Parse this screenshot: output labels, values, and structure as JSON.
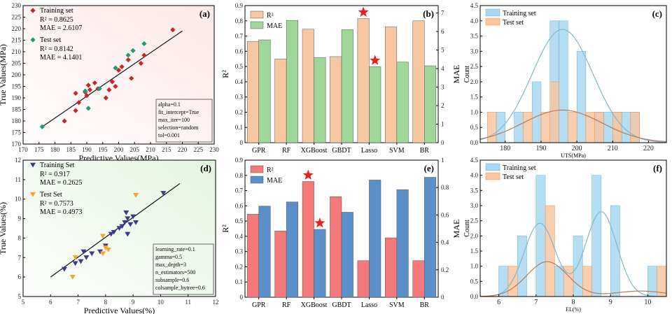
{
  "chart_data": [
    {
      "id": "a",
      "panel_label": "(a)",
      "type": "scatter",
      "xlabel": "Predictive Values(MPa)",
      "ylabel": "True Values(MPa)",
      "xlim": [
        170,
        230
      ],
      "ylim": [
        170,
        230
      ],
      "xticks": [
        170,
        175,
        180,
        185,
        190,
        195,
        200,
        205,
        210,
        215,
        220,
        225,
        230
      ],
      "yticks": [
        170,
        175,
        180,
        185,
        190,
        195,
        200,
        205,
        210,
        215,
        220,
        225,
        230
      ],
      "background": "#fde8e8",
      "fit_line": [
        [
          176,
          177.5
        ],
        [
          220,
          219
        ]
      ],
      "legend": [
        {
          "name": "Training set",
          "stats": [
            "R² = 0.8625",
            "MAE = 2.6107"
          ],
          "color": "#c62828",
          "marker": "diamond"
        },
        {
          "name": "Test set",
          "stats": [
            "R² = 0.8142",
            "MAE = 4.1401"
          ],
          "color": "#1a9e77",
          "marker": "diamond"
        }
      ],
      "series": [
        {
          "name": "Training set",
          "color": "#c62828",
          "points": [
            [
              183,
              180
            ],
            [
              186.5,
              184.5
            ],
            [
              186.5,
              192
            ],
            [
              187.5,
              188
            ],
            [
              189.5,
              192.5
            ],
            [
              190.5,
              195.5
            ],
            [
              191,
              193.5
            ],
            [
              193.5,
              194
            ],
            [
              192.5,
              196.5
            ],
            [
              196,
              190
            ],
            [
              197,
              193.5
            ],
            [
              198,
              197
            ],
            [
              199,
              195
            ],
            [
              200,
              202
            ],
            [
              201,
              203.5
            ],
            [
              203,
              206.5
            ],
            [
              204,
              198.5
            ],
            [
              207,
              205
            ],
            [
              208,
              208.5
            ],
            [
              217,
              219.5
            ],
            [
              190,
              191
            ]
          ]
        },
        {
          "name": "Test set",
          "color": "#1a9e77",
          "points": [
            [
              176,
              177.5
            ],
            [
              189.5,
              193
            ],
            [
              190.5,
              185.5
            ],
            [
              194,
              194
            ],
            [
              199,
              203
            ],
            [
              203,
              208.5
            ],
            [
              204.5,
              210.5
            ],
            [
              208,
              213.5
            ]
          ]
        }
      ],
      "params_box": [
        "alpha=0.1",
        "fit_intercept=True",
        "max_iter=100",
        "selection=random",
        "tol=0.001"
      ]
    },
    {
      "id": "b",
      "panel_label": "(b)",
      "type": "bar",
      "categories": [
        "GPR",
        "RF",
        "XGBoost",
        "GBDT",
        "Lasso",
        "SVM",
        "BR"
      ],
      "ylabel": "R²",
      "y2label": "MAE",
      "ylim": [
        0,
        0.9
      ],
      "yticks": [
        0,
        0.1,
        0.2,
        0.3,
        0.4,
        0.5,
        0.6,
        0.7,
        0.8,
        0.9
      ],
      "y2lim": [
        0,
        7.4
      ],
      "y2ticks": [
        0,
        1,
        2,
        3,
        4,
        5,
        6,
        7
      ],
      "series": [
        {
          "name": "R²",
          "axis": "left",
          "color": "#f6c7a1",
          "values": [
            0.665,
            0.55,
            0.745,
            0.565,
            0.815,
            0.76,
            0.8
          ]
        },
        {
          "name": "MAE",
          "axis": "right",
          "color": "#9fd69a",
          "values": [
            5.55,
            6.6,
            4.6,
            6.1,
            4.1,
            4.35,
            4.15
          ]
        }
      ],
      "stars": [
        {
          "category": "Lasso",
          "series": "R²"
        },
        {
          "category": "Lasso",
          "series": "MAE"
        }
      ]
    },
    {
      "id": "c",
      "panel_label": "(c)",
      "type": "histogram",
      "xlabel": "UTS(MPa)",
      "ylabel": "Count",
      "xlim": [
        173,
        225
      ],
      "xticks": [
        180,
        190,
        200,
        210,
        220
      ],
      "ylim": [
        0,
        4.5
      ],
      "yticks": [
        0,
        0.5,
        1.0,
        1.5,
        2.0,
        2.5,
        3.0,
        3.5,
        4.0,
        4.5
      ],
      "bin_width": 2.5,
      "legend": [
        "Training set",
        "Test set"
      ],
      "series": [
        {
          "name": "Training set",
          "color": "#a8d8f0",
          "edge": "#6aaed6",
          "bins": [
            [
              177.5,
              1
            ],
            [
              182.5,
              1
            ],
            [
              187.5,
              2
            ],
            [
              192.5,
              4
            ],
            [
              195,
              4
            ],
            [
              200,
              3
            ],
            [
              205,
              1
            ],
            [
              207.5,
              1
            ],
            [
              210,
              1
            ],
            [
              212.5,
              1
            ],
            [
              215,
              1
            ]
          ]
        },
        {
          "name": "Test set",
          "color": "#f6c7a1",
          "edge": "#e0965a",
          "bins": [
            [
              175,
              1
            ],
            [
              185,
              1
            ],
            [
              190,
              1
            ],
            [
              192.5,
              2
            ],
            [
              197.5,
              1
            ],
            [
              202.5,
              1
            ],
            [
              205,
              1
            ],
            [
              210,
              1
            ],
            [
              215,
              1
            ]
          ]
        }
      ],
      "kde": [
        {
          "name": "Training set",
          "color": "#7fb7d4",
          "mean": 196,
          "sd": 8.5,
          "peak": 3.72
        },
        {
          "name": "Test set",
          "color": "#b97a5a",
          "mean": 196,
          "sd": 11,
          "peak": 1.07
        }
      ]
    },
    {
      "id": "d",
      "panel_label": "(d)",
      "type": "scatter",
      "xlabel": "Predictive Values(%)",
      "ylabel": "True Values(%)",
      "xlim": [
        5,
        12
      ],
      "ylim": [
        5,
        12
      ],
      "xticks": [
        5,
        6,
        7,
        8,
        9,
        10,
        11,
        12
      ],
      "yticks": [
        5,
        6,
        7,
        8,
        9,
        10,
        11,
        12
      ],
      "background": "#e6f4e3",
      "fit_line": [
        [
          6,
          6
        ],
        [
          10.7,
          10.8
        ]
      ],
      "legend": [
        {
          "name": "Training Set",
          "stats": [
            "R² = 0.917",
            "MAE = 0.2625"
          ],
          "color": "#3a3a8c",
          "marker": "triangle-down"
        },
        {
          "name": "Test Set",
          "stats": [
            "R² = 0.7573",
            "MAE = 0.4973"
          ],
          "color": "#f5a623",
          "marker": "triangle-down"
        }
      ],
      "series": [
        {
          "name": "Training Set",
          "color": "#3a3a8c",
          "points": [
            [
              6.5,
              6.4
            ],
            [
              6.9,
              6.7
            ],
            [
              7.1,
              6.8
            ],
            [
              7.2,
              7.3
            ],
            [
              7.3,
              7.0
            ],
            [
              7.5,
              7.2
            ],
            [
              7.8,
              7.3
            ],
            [
              8.0,
              7.6
            ],
            [
              8.2,
              8.2
            ],
            [
              8.3,
              8.3
            ],
            [
              8.5,
              8.5
            ],
            [
              8.6,
              8.6
            ],
            [
              8.7,
              8.8
            ],
            [
              8.8,
              9.0
            ],
            [
              8.8,
              8.2
            ],
            [
              8.9,
              8.7
            ],
            [
              9.0,
              9.1
            ],
            [
              9.1,
              8.8
            ],
            [
              8.75,
              9.3
            ],
            [
              10.1,
              10.3
            ]
          ]
        },
        {
          "name": "Test Set",
          "color": "#f5a623",
          "points": [
            [
              6.8,
              6.0
            ],
            [
              6.9,
              7.0
            ],
            [
              7.9,
              8.1
            ],
            [
              7.9,
              7.2
            ],
            [
              8.0,
              7.5
            ],
            [
              9.1,
              10.2
            ],
            [
              8.1,
              7.4
            ]
          ]
        }
      ],
      "params_box": [
        "learning_rate=0.1",
        "gamma=0.5",
        "max_depth=3",
        "n_estimators=500",
        "subsample=0.6",
        "colsample_bytree=0.6"
      ]
    },
    {
      "id": "e",
      "panel_label": "(e)",
      "type": "bar",
      "categories": [
        "GPR",
        "RF",
        "XGBoost",
        "GBDT",
        "Lasso",
        "SVM",
        "BR"
      ],
      "ylabel": "R²",
      "y2label": "MAE",
      "ylim": [
        0,
        0.9
      ],
      "yticks": [
        0,
        0.1,
        0.2,
        0.3,
        0.4,
        0.5,
        0.6,
        0.7,
        0.8,
        0.9
      ],
      "y2lim": [
        0,
        1.0
      ],
      "y2ticks": [
        0,
        0.2,
        0.4,
        0.6,
        0.8,
        1.0
      ],
      "series": [
        {
          "name": "R²",
          "axis": "left",
          "color": "#f4797a",
          "values": [
            0.545,
            0.435,
            0.76,
            0.66,
            0.24,
            0.39,
            0.24
          ]
        },
        {
          "name": "MAE",
          "axis": "right",
          "color": "#5b8fc9",
          "values": [
            0.665,
            0.695,
            0.495,
            0.62,
            0.855,
            0.785,
            0.875
          ]
        }
      ],
      "stars": [
        {
          "category": "XGBoost",
          "series": "R²"
        },
        {
          "category": "XGBoost",
          "series": "MAE"
        }
      ]
    },
    {
      "id": "f",
      "panel_label": "(f)",
      "type": "histogram",
      "xlabel": "EL(%)",
      "ylabel": "Count",
      "xlim": [
        5.5,
        10.5
      ],
      "xticks": [
        6,
        7,
        8,
        9,
        10
      ],
      "ylim": [
        0,
        4.5
      ],
      "yticks": [
        0,
        0.5,
        1.0,
        1.5,
        2.0,
        2.5,
        3.0,
        3.5,
        4.0,
        4.5
      ],
      "bin_width": 0.25,
      "legend": [
        "Training set",
        "Test set"
      ],
      "series": [
        {
          "name": "Training set",
          "color": "#a8d8f0",
          "edge": "#6aaed6",
          "bins": [
            [
              6.0,
              1
            ],
            [
              6.5,
              2
            ],
            [
              7.0,
              4
            ],
            [
              7.5,
              1
            ],
            [
              8.0,
              2
            ],
            [
              8.5,
              4
            ],
            [
              9.0,
              3
            ],
            [
              10.0,
              1
            ]
          ]
        },
        {
          "name": "Test set",
          "color": "#f6c7a1",
          "edge": "#e0965a",
          "bins": [
            [
              6.25,
              1
            ],
            [
              7.25,
              3
            ],
            [
              7.75,
              1
            ],
            [
              8.25,
              1
            ],
            [
              10.25,
              1
            ]
          ]
        }
      ],
      "kde": [
        {
          "name": "Training set",
          "color": "#7fb7d4",
          "bimodal": [
            [
              7.1,
              0.42,
              2.42
            ],
            [
              8.75,
              0.42,
              2.8
            ]
          ]
        },
        {
          "name": "Test set",
          "color": "#b97a5a",
          "bimodal": [
            [
              7.3,
              0.55,
              1.15
            ],
            [
              9.8,
              0.7,
              0.18
            ]
          ]
        }
      ]
    }
  ]
}
